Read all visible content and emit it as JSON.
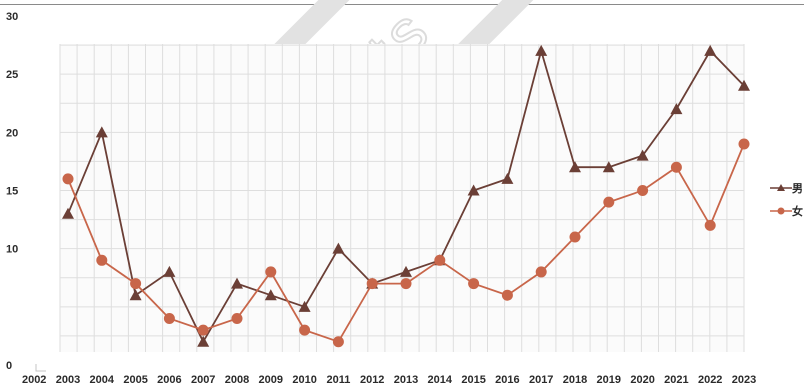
{
  "watermark": {
    "text": "All Rights",
    "color": "#d9d9d9"
  },
  "chart_data": {
    "type": "line",
    "title": "",
    "xlabel": "",
    "ylabel": "",
    "categories": [
      "2003",
      "2004",
      "2005",
      "2006",
      "2007",
      "2008",
      "2009",
      "2010",
      "2011",
      "2012",
      "2013",
      "2014",
      "2015",
      "2016",
      "2017",
      "2018",
      "2019",
      "2020",
      "2021",
      "2022",
      "2023"
    ],
    "x_tick_labels": [
      "2002",
      "2003",
      "2004",
      "2005",
      "2006",
      "2007",
      "2008",
      "2009",
      "2010",
      "2011",
      "2012",
      "2013",
      "2014",
      "2015",
      "2016",
      "2017",
      "2018",
      "2019",
      "2020",
      "2021",
      "2022",
      "2023"
    ],
    "y_tick_labels": [
      "0",
      "10",
      "15",
      "20",
      "25",
      "30"
    ],
    "ylim": [
      0,
      30
    ],
    "grid": true,
    "legend_position": "right",
    "series": [
      {
        "name": "男",
        "color": "#6b3f36",
        "marker": "triangle",
        "values": [
          13,
          20,
          6,
          8,
          2,
          7,
          6,
          5,
          10,
          7,
          8,
          9,
          15,
          16,
          27,
          17,
          17,
          18,
          22,
          27,
          24
        ]
      },
      {
        "name": "女",
        "color": "#c8664a",
        "marker": "circle",
        "values": [
          16,
          9,
          7,
          4,
          3,
          4,
          8,
          3,
          2,
          7,
          7,
          9,
          7,
          6,
          8,
          11,
          14,
          15,
          17,
          12,
          19
        ]
      }
    ]
  }
}
